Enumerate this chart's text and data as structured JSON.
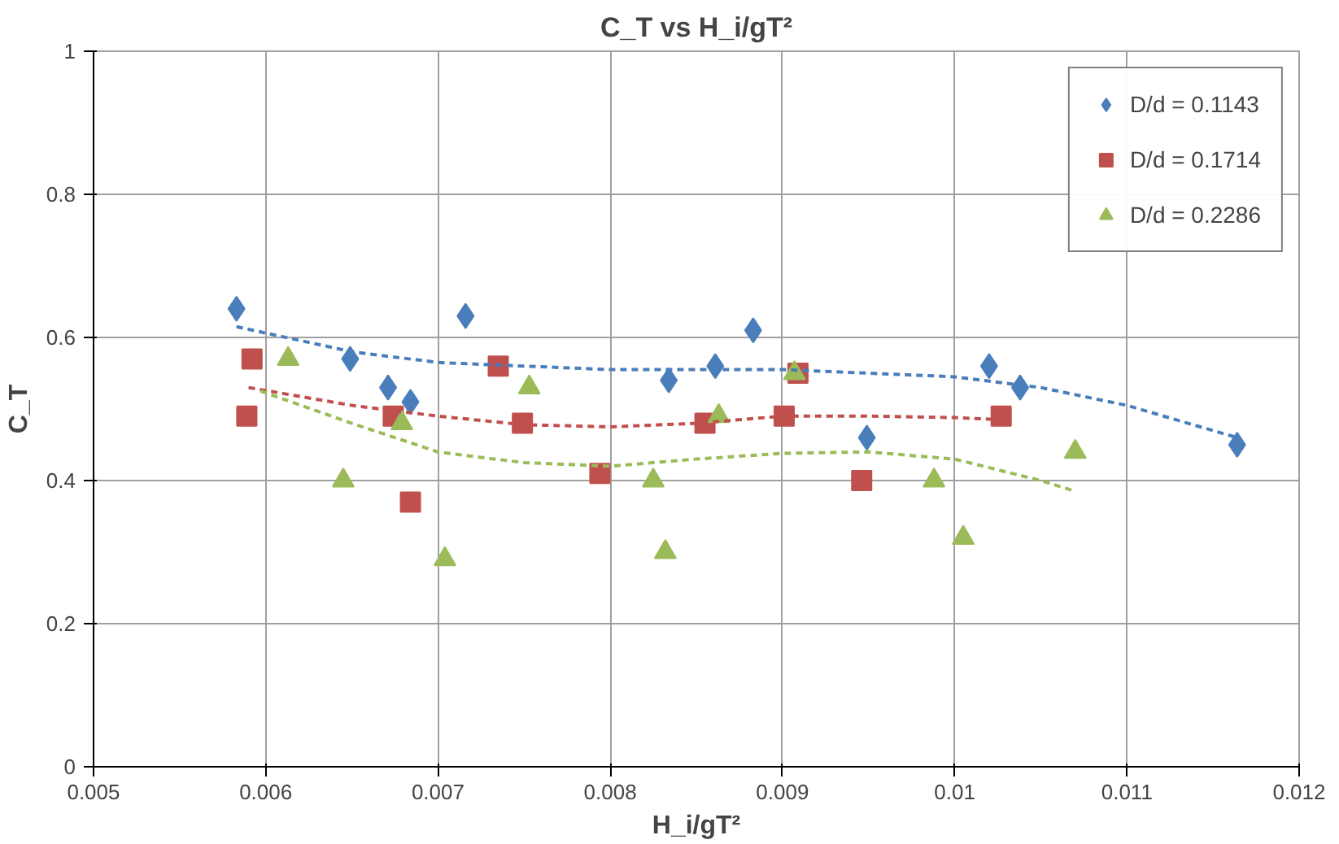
{
  "chart_data": {
    "type": "scatter",
    "title": "C_T vs H_i/gT²",
    "xlabel": "H_i/gT²",
    "ylabel": "C_T",
    "xlim": [
      0.005,
      0.012
    ],
    "xticks": [
      0.005,
      0.006,
      0.007,
      0.008,
      0.009,
      0.01,
      0.011,
      0.012
    ],
    "ylim": [
      0,
      1
    ],
    "yticks": [
      0,
      0.2,
      0.4,
      0.6,
      0.8,
      1
    ],
    "grid": true,
    "legend": "top right",
    "series": [
      {
        "name": "D/d = 0.1143",
        "color": "#4a7ebb",
        "marker": "diamond",
        "x": [
          0.00583,
          0.00649,
          0.00671,
          0.00684,
          0.00716,
          0.00834,
          0.00861,
          0.00883,
          0.00949,
          0.0102,
          0.01038,
          0.01164
        ],
        "values": [
          0.64,
          0.57,
          0.53,
          0.51,
          0.63,
          0.54,
          0.56,
          0.61,
          0.46,
          0.56,
          0.53,
          0.45
        ]
      },
      {
        "name": "D/d = 0.1714",
        "color": "#c0504d",
        "marker": "square",
        "x": [
          0.00592,
          0.00589,
          0.00674,
          0.00684,
          0.00735,
          0.00749,
          0.00794,
          0.00855,
          0.00901,
          0.00909,
          0.00946,
          0.01027
        ],
        "values": [
          0.57,
          0.49,
          0.49,
          0.37,
          0.56,
          0.48,
          0.41,
          0.48,
          0.49,
          0.55,
          0.4,
          0.49
        ]
      },
      {
        "name": "D/d = 0.2286",
        "color": "#9bbb59",
        "marker": "triangle",
        "x": [
          0.00613,
          0.00645,
          0.00679,
          0.00704,
          0.00753,
          0.00825,
          0.00832,
          0.00863,
          0.00907,
          0.00988,
          0.01005,
          0.0107
        ],
        "values": [
          0.57,
          0.4,
          0.48,
          0.29,
          0.53,
          0.4,
          0.3,
          0.49,
          0.55,
          0.4,
          0.32,
          0.44
        ]
      },
      {
        "type": "line",
        "color": "#4a7ebb",
        "line_style": "dashed",
        "x": [
          0.00583,
          0.0065,
          0.007,
          0.008,
          0.009,
          0.0095,
          0.01,
          0.0105,
          0.011,
          0.01164
        ],
        "values": [
          0.615,
          0.58,
          0.565,
          0.555,
          0.555,
          0.55,
          0.545,
          0.53,
          0.505,
          0.46
        ]
      },
      {
        "type": "line",
        "color": "#c0504d",
        "line_style": "dashed",
        "x": [
          0.0059,
          0.0065,
          0.007,
          0.0075,
          0.008,
          0.0085,
          0.009,
          0.0095,
          0.01,
          0.01027
        ],
        "values": [
          0.53,
          0.505,
          0.49,
          0.478,
          0.475,
          0.48,
          0.49,
          0.49,
          0.488,
          0.485
        ]
      },
      {
        "type": "line",
        "color": "#9bbb59",
        "line_style": "dashed",
        "x": [
          0.00597,
          0.0065,
          0.007,
          0.0075,
          0.008,
          0.0085,
          0.009,
          0.0095,
          0.01,
          0.0105,
          0.0107
        ],
        "values": [
          0.525,
          0.48,
          0.44,
          0.425,
          0.42,
          0.43,
          0.438,
          0.44,
          0.43,
          0.4,
          0.385
        ]
      }
    ]
  }
}
